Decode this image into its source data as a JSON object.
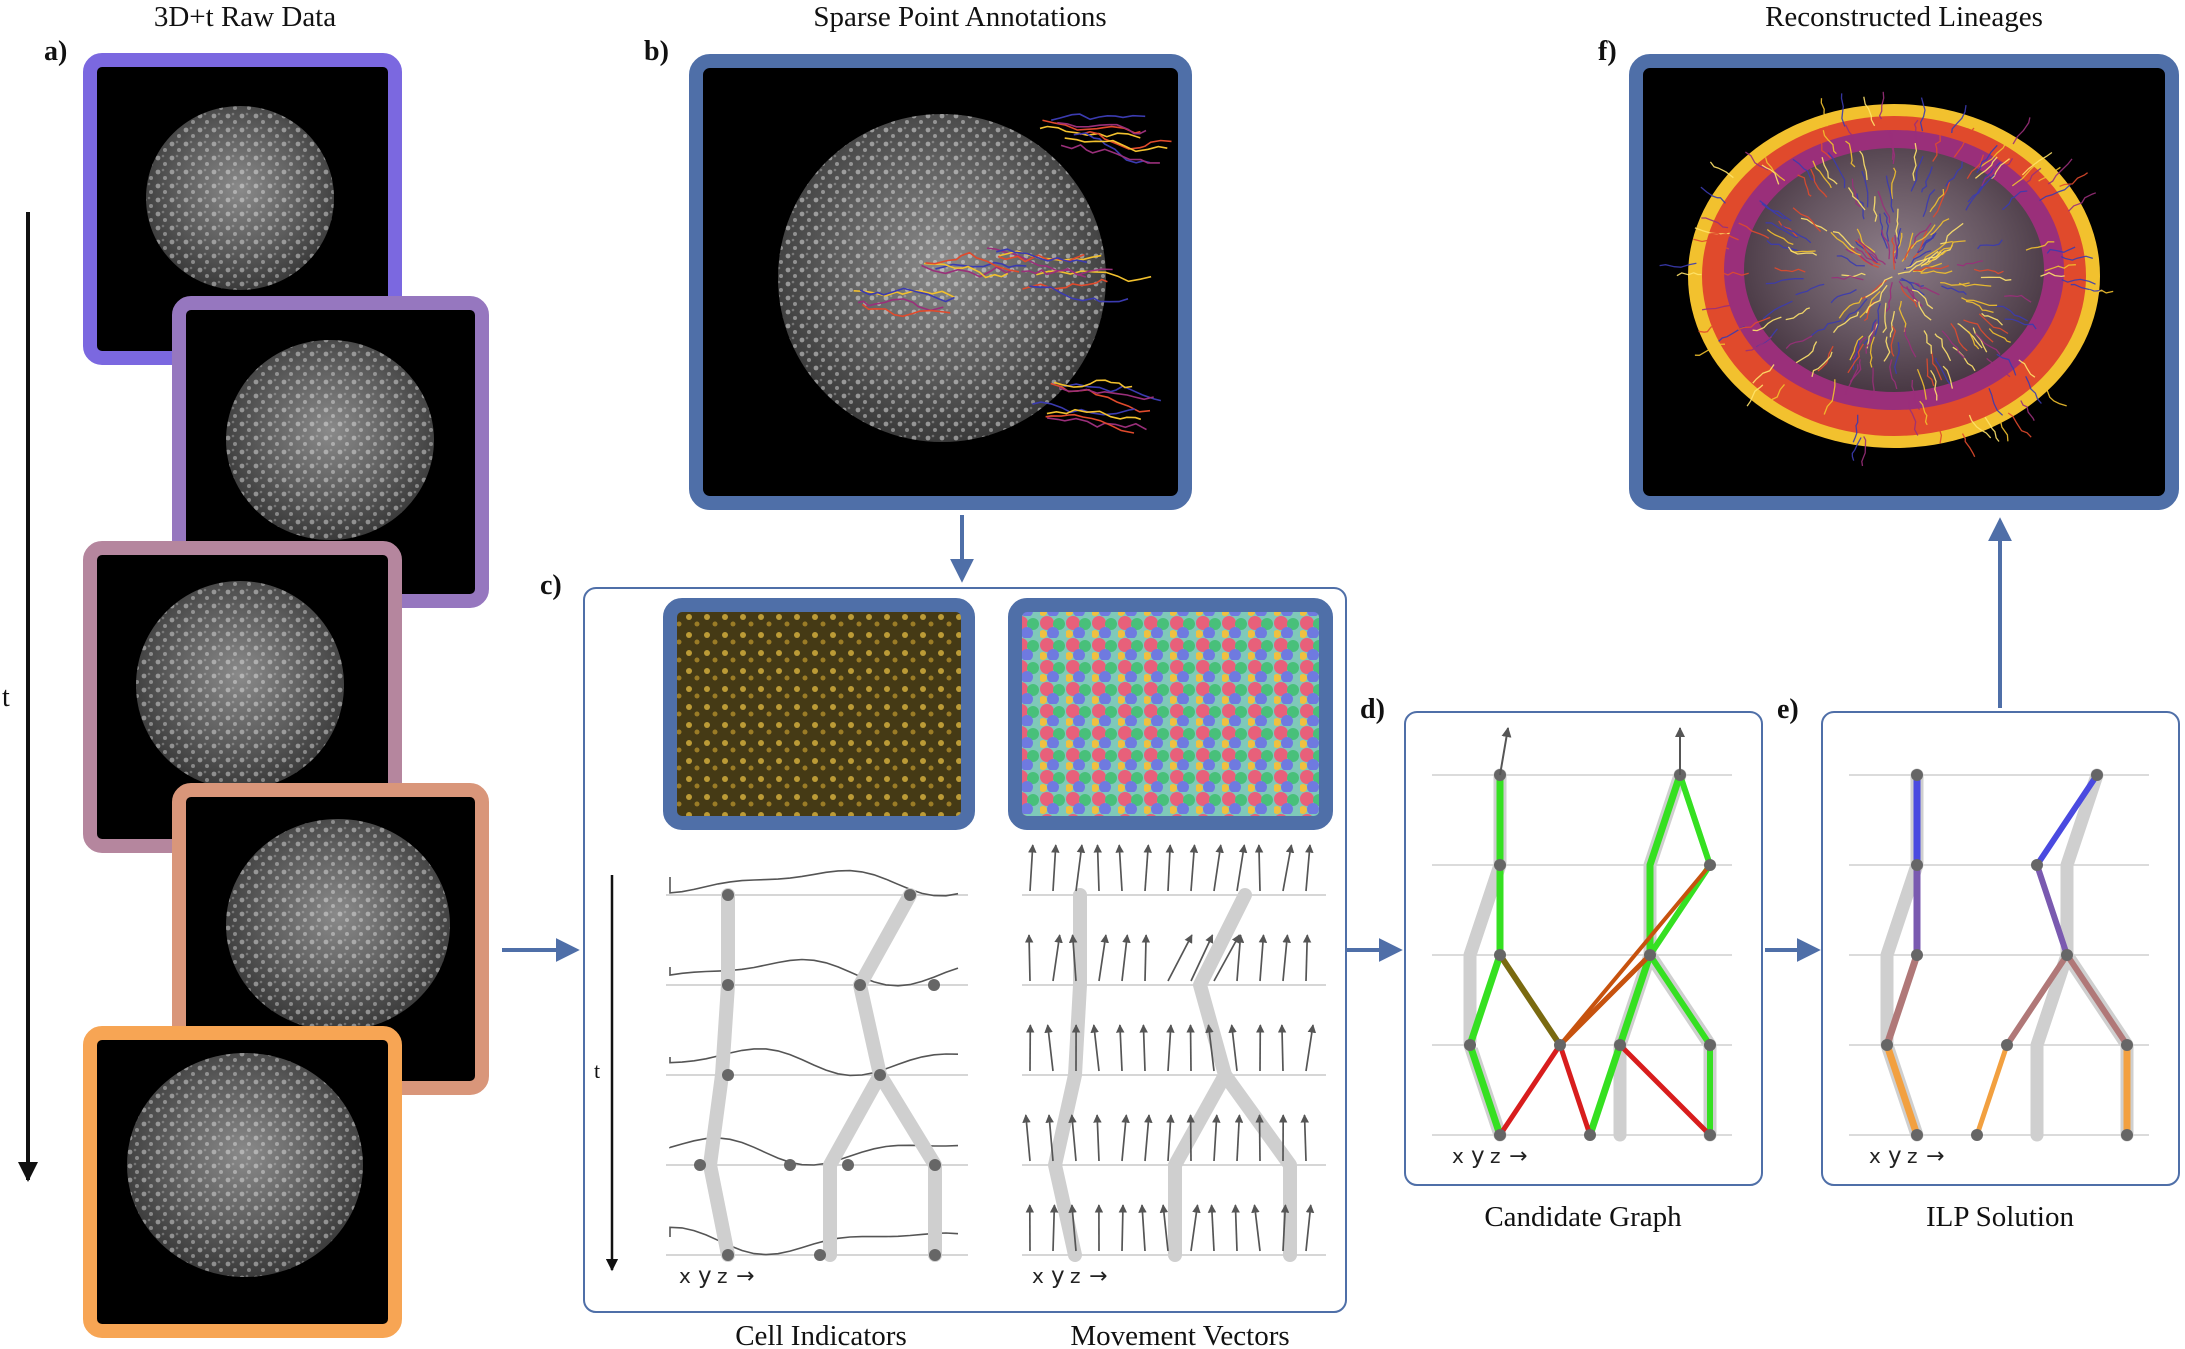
{
  "titles": {
    "raw": "3D+t Raw Data",
    "annotations": "Sparse Point Annotations",
    "lineages": "Reconstructed Lineages"
  },
  "labels": {
    "a": "a)",
    "b": "b)",
    "c": "c)",
    "d": "d)",
    "e": "e)",
    "f": "f)"
  },
  "captions": {
    "cell_indicators": "Cell Indicators",
    "movement_vectors": "Movement Vectors",
    "candidate_graph": "Candidate Graph",
    "ilp_solution": "ILP Solution"
  },
  "axis": {
    "time": "t",
    "x": "x",
    "y": "y",
    "z": "z",
    "arrow": "→"
  },
  "colors": {
    "panel_blue": "#4f6fa8",
    "frames": [
      "#7b68e0",
      "#9677bf",
      "#b5869e",
      "#d9967a",
      "#f7a554"
    ],
    "track_gray": "#cfcfcf",
    "green": "#35e021",
    "red": "#d81d1d",
    "olive": "#7a6a10",
    "orange": "#c7520e"
  }
}
